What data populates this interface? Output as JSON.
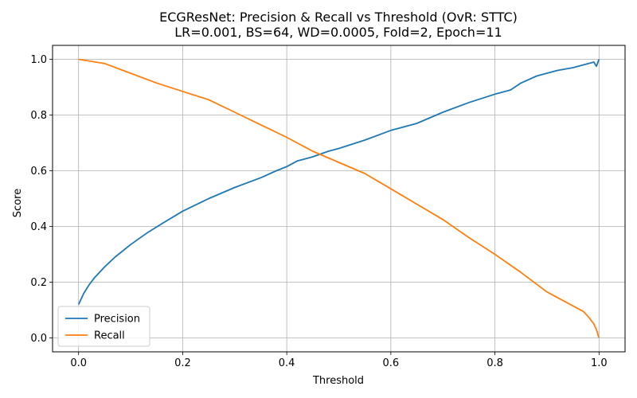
{
  "chart_data": {
    "type": "line",
    "title": "ECGResNet: Precision & Recall vs Threshold (OvR: STTC)",
    "subtitle": "LR=0.001, BS=64, WD=0.0005, Fold=2, Epoch=11",
    "xlabel": "Threshold",
    "ylabel": "Score",
    "xlim": [
      -0.05,
      1.05
    ],
    "ylim": [
      -0.05,
      1.05
    ],
    "xticks": [
      0.0,
      0.2,
      0.4,
      0.6,
      0.8,
      1.0
    ],
    "xtick_labels": [
      "0.0",
      "0.2",
      "0.4",
      "0.6",
      "0.8",
      "1.0"
    ],
    "yticks": [
      0.0,
      0.2,
      0.4,
      0.6,
      0.8,
      1.0
    ],
    "ytick_labels": [
      "0.0",
      "0.2",
      "0.4",
      "0.6",
      "0.8",
      "1.0"
    ],
    "grid": true,
    "legend_position": "lower-left",
    "series": [
      {
        "name": "Precision",
        "color": "#1f77b4",
        "x": [
          0.0,
          0.01,
          0.02,
          0.03,
          0.05,
          0.07,
          0.1,
          0.13,
          0.16,
          0.2,
          0.25,
          0.3,
          0.35,
          0.38,
          0.4,
          0.42,
          0.45,
          0.48,
          0.5,
          0.55,
          0.6,
          0.65,
          0.7,
          0.75,
          0.8,
          0.83,
          0.85,
          0.88,
          0.9,
          0.92,
          0.95,
          0.97,
          0.99,
          0.995,
          1.0
        ],
        "y": [
          0.12,
          0.16,
          0.19,
          0.215,
          0.255,
          0.29,
          0.335,
          0.375,
          0.41,
          0.455,
          0.5,
          0.54,
          0.575,
          0.6,
          0.615,
          0.635,
          0.65,
          0.67,
          0.68,
          0.71,
          0.745,
          0.77,
          0.81,
          0.845,
          0.875,
          0.89,
          0.915,
          0.94,
          0.95,
          0.96,
          0.97,
          0.98,
          0.99,
          0.975,
          1.0
        ]
      },
      {
        "name": "Recall",
        "color": "#ff7f0e",
        "x": [
          0.0,
          0.05,
          0.1,
          0.15,
          0.2,
          0.25,
          0.3,
          0.35,
          0.4,
          0.45,
          0.5,
          0.55,
          0.6,
          0.65,
          0.7,
          0.75,
          0.8,
          0.85,
          0.9,
          0.95,
          0.97,
          0.98,
          0.99,
          0.995,
          1.0
        ],
        "y": [
          1.0,
          0.985,
          0.95,
          0.915,
          0.885,
          0.855,
          0.81,
          0.765,
          0.72,
          0.67,
          0.63,
          0.59,
          0.535,
          0.48,
          0.425,
          0.36,
          0.3,
          0.235,
          0.165,
          0.115,
          0.095,
          0.075,
          0.05,
          0.03,
          0.0
        ]
      }
    ]
  }
}
